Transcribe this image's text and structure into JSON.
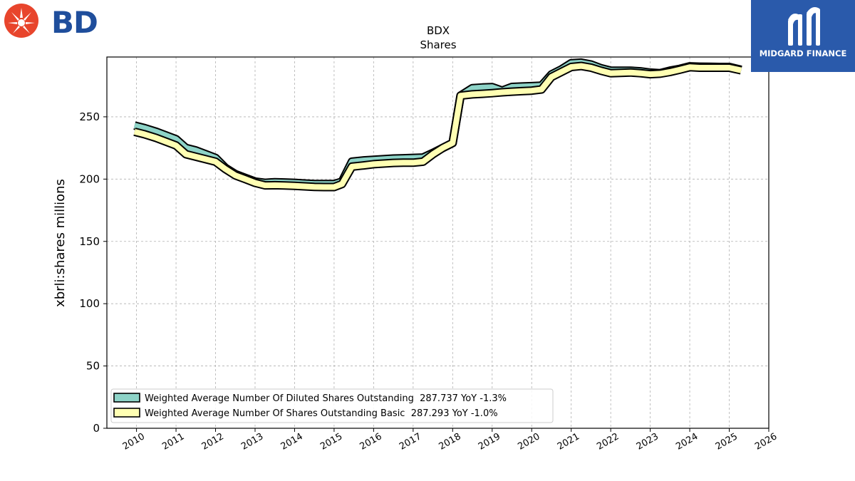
{
  "brand": {
    "company_logo_text": "BD",
    "publisher_name": "MIDGARD FINANCE"
  },
  "colors": {
    "diluted": "#8dd3c7",
    "basic": "#ffffb3",
    "outline": "#000000",
    "grid": "#b0b0b0"
  },
  "chart_data": {
    "type": "line",
    "title": "BDX",
    "subtitle": "Shares",
    "xlabel": "",
    "ylabel": "xbrli:shares millions",
    "xlim": [
      2009.25,
      2026.0
    ],
    "ylim": [
      0,
      298
    ],
    "x_ticks": [
      "2010",
      "2011",
      "2012",
      "2013",
      "2014",
      "2015",
      "2016",
      "2017",
      "2018",
      "2019",
      "2020",
      "2021",
      "2022",
      "2023",
      "2024",
      "2025",
      "2026"
    ],
    "y_ticks": [
      0,
      50,
      100,
      150,
      200,
      250
    ],
    "grid": true,
    "legend_position": "lower-left",
    "series": [
      {
        "name": "Weighted Average Number Of Diluted Shares Outstanding",
        "legend_label": "Weighted Average Number Of Diluted Shares Outstanding  287.737 YoY -1.3%",
        "color": "#8dd3c7",
        "x": [
          2009.95,
          2010.2,
          2010.5,
          2010.75,
          2011.0,
          2011.25,
          2011.5,
          2011.75,
          2012.0,
          2012.25,
          2012.5,
          2012.75,
          2013.0,
          2013.25,
          2013.5,
          2013.75,
          2014.0,
          2014.25,
          2014.5,
          2014.75,
          2015.0,
          2015.2,
          2015.45,
          2015.75,
          2016.0,
          2016.25,
          2016.5,
          2016.75,
          2017.0,
          2017.25,
          2017.5,
          2017.75,
          2018.0,
          2018.2,
          2018.5,
          2018.75,
          2019.0,
          2019.25,
          2019.5,
          2019.75,
          2020.0,
          2020.25,
          2020.5,
          2020.75,
          2021.0,
          2021.25,
          2021.5,
          2021.75,
          2022.0,
          2022.25,
          2022.5,
          2022.75,
          2023.0,
          2023.25,
          2023.5,
          2023.75,
          2024.0,
          2024.25,
          2024.5,
          2024.75,
          2025.0,
          2025.3
        ],
        "values": [
          243,
          241,
          238,
          235,
          232,
          225,
          223,
          220,
          217,
          209,
          204,
          201,
          198,
          197,
          197.5,
          197.3,
          197,
          196.5,
          196,
          196,
          196,
          198,
          214,
          215,
          215.5,
          216,
          216.5,
          216.7,
          217,
          217.3,
          221,
          225,
          229,
          267,
          273,
          273.5,
          273.8,
          271,
          274,
          274.3,
          274.6,
          275,
          284,
          288,
          293,
          293.5,
          292,
          289,
          287,
          287,
          287,
          286.5,
          285.5,
          285,
          287,
          288.5,
          290.5,
          290.2,
          290.1,
          290,
          290,
          287.7
        ]
      },
      {
        "name": "Weighted Average Number Of Shares Outstanding Basic",
        "legend_label": "Weighted Average Number Of Shares Outstanding Basic  287.293 YoY -1.0%",
        "color": "#ffffb3",
        "x": [
          2009.95,
          2010.2,
          2010.5,
          2010.75,
          2011.0,
          2011.25,
          2011.5,
          2011.75,
          2012.0,
          2012.25,
          2012.5,
          2012.75,
          2013.0,
          2013.25,
          2013.5,
          2013.75,
          2014.0,
          2014.25,
          2014.5,
          2014.75,
          2015.0,
          2015.2,
          2015.45,
          2015.75,
          2016.0,
          2016.25,
          2016.5,
          2016.75,
          2017.0,
          2017.25,
          2017.5,
          2017.75,
          2018.0,
          2018.2,
          2018.5,
          2018.75,
          2019.0,
          2019.25,
          2019.5,
          2019.75,
          2020.0,
          2020.25,
          2020.5,
          2020.75,
          2021.0,
          2021.25,
          2021.5,
          2021.75,
          2022.0,
          2022.25,
          2022.5,
          2022.75,
          2023.0,
          2023.25,
          2023.5,
          2023.75,
          2024.0,
          2024.25,
          2024.5,
          2024.75,
          2025.0,
          2025.3
        ],
        "values": [
          238,
          236,
          233,
          230,
          227,
          220,
          218,
          216,
          214,
          208,
          203,
          200,
          197,
          195,
          195.1,
          194.9,
          194.6,
          194.2,
          193.8,
          193.6,
          193.6,
          196,
          210,
          211,
          212,
          212.5,
          213,
          213.2,
          213.2,
          214,
          220,
          225,
          229,
          267,
          268,
          268.5,
          269,
          269.7,
          270.2,
          270.6,
          271,
          272,
          282,
          286,
          290,
          290.8,
          289.5,
          287,
          285,
          285.3,
          285.6,
          285,
          284.2,
          284.6,
          286,
          287.8,
          289.8,
          289.4,
          289.4,
          289.4,
          289.4,
          287.3
        ]
      }
    ]
  }
}
